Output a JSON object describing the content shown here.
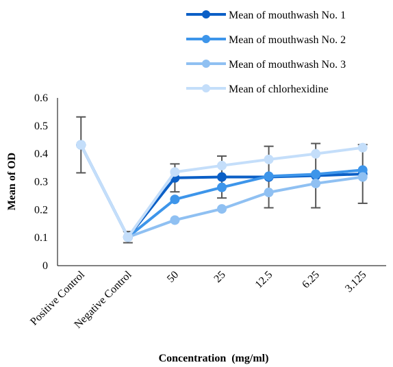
{
  "chart_data": {
    "type": "line",
    "title": "",
    "xlabel": "Concentration  (mg/ml)",
    "ylabel": "Mean of OD",
    "ylim": [
      0,
      0.6
    ],
    "yticks": [
      0,
      0.1,
      0.2,
      0.3,
      0.4,
      0.5,
      0.6
    ],
    "ytick_labels": [
      "0",
      "0.1",
      "0.2",
      "0.3",
      "0.4",
      "0.5",
      "0.6"
    ],
    "categories": [
      "Positive Control",
      "Negative Control",
      "50",
      "25",
      "12.5",
      "6.25",
      "3.125"
    ],
    "grid": false,
    "legend_position": "top-right",
    "series": [
      {
        "name": "Mean of mouthwash No. 1",
        "color": "#0b5fc6",
        "values": [
          0.432,
          0.102,
          0.314,
          0.317,
          0.317,
          0.322,
          0.328
        ],
        "error": [
          0.1,
          0.02,
          0.05,
          0.075,
          0.11,
          0.115,
          0.105
        ]
      },
      {
        "name": "Mean of mouthwash No. 2",
        "color": "#3d95ea",
        "values": [
          0.432,
          0.102,
          0.237,
          0.28,
          0.32,
          0.327,
          0.342
        ]
      },
      {
        "name": "Mean of mouthwash No. 3",
        "color": "#8fc0f2",
        "values": [
          0.432,
          0.102,
          0.163,
          0.203,
          0.262,
          0.294,
          0.317
        ]
      },
      {
        "name": "Mean of chlorhexidine",
        "color": "#c4defa",
        "values": [
          0.432,
          0.102,
          0.335,
          0.358,
          0.38,
          0.4,
          0.422
        ]
      }
    ]
  }
}
